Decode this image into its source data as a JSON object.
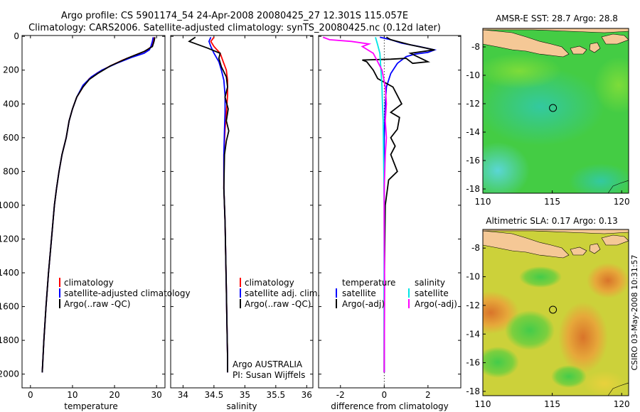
{
  "header": {
    "line1": "Argo profile: CS 5901174_54 24-Apr-2008 20080425_27 12.301S 115.057E",
    "line2": "Climatology: CARS2006. Satellite-adjusted climatology: synTS_20080425.nc (0.12d later)"
  },
  "side_caption": "CSIRO 03-May-2008 10:31:57",
  "colors": {
    "climatology": "#ff0000",
    "satellite": "#0000ff",
    "argo": "#000000",
    "satellite_salinity": "#00e5e5",
    "argo_salinity": "#ff00ff",
    "land": "#f5c896",
    "sst_bg": "#44cc44",
    "sla_bg": "#ccd13a"
  },
  "chart_data": [
    {
      "type": "line",
      "xlabel": "temperature",
      "ylabel": "",
      "xlim": [
        -2,
        32
      ],
      "ylim": [
        2050,
        0
      ],
      "xticks": [
        "0",
        "10",
        "20",
        "30"
      ],
      "xtick_values": [
        0,
        10,
        20,
        30
      ],
      "yticks": [
        "0",
        "200",
        "400",
        "600",
        "800",
        "1000",
        "1200",
        "1400",
        "1600",
        "1800",
        "2000"
      ],
      "ytick_values": [
        0,
        200,
        400,
        600,
        800,
        1000,
        1200,
        1400,
        1600,
        1800,
        2000
      ],
      "legend": [
        "climatology",
        "satellite-adjusted climatology",
        "Argo(..raw -QC)"
      ],
      "series": [
        {
          "name": "climatology",
          "color": "#ff0000",
          "points": [
            [
              29.5,
              5
            ],
            [
              29.2,
              30
            ],
            [
              28.8,
              60
            ],
            [
              27.5,
              85
            ],
            [
              25,
              110
            ],
            [
              22,
              140
            ],
            [
              19,
              175
            ],
            [
              16,
              215
            ],
            [
              14,
              250
            ],
            [
              12.5,
              300
            ],
            [
              11,
              360
            ],
            [
              10,
              430
            ],
            [
              9.2,
              500
            ],
            [
              8.5,
              600
            ],
            [
              7.5,
              700
            ],
            [
              6.8,
              800
            ],
            [
              6.2,
              900
            ],
            [
              5.7,
              1000
            ],
            [
              5,
              1200
            ],
            [
              4.3,
              1400
            ],
            [
              3.7,
              1600
            ],
            [
              3.2,
              1800
            ],
            [
              2.8,
              1990
            ]
          ]
        },
        {
          "name": "satellite-adjusted climatology",
          "color": "#0000ff",
          "points": [
            [
              29.2,
              5
            ],
            [
              29,
              30
            ],
            [
              28.7,
              55
            ],
            [
              28.3,
              80
            ],
            [
              27,
              100
            ],
            [
              24,
              125
            ],
            [
              20.5,
              160
            ],
            [
              17,
              200
            ],
            [
              14.5,
              240
            ],
            [
              12.5,
              290
            ],
            [
              11,
              360
            ],
            [
              10,
              430
            ],
            [
              9.2,
              500
            ],
            [
              8.5,
              600
            ],
            [
              7.5,
              700
            ],
            [
              6.8,
              800
            ],
            [
              6.2,
              900
            ],
            [
              5.7,
              1000
            ],
            [
              5,
              1200
            ],
            [
              4.3,
              1400
            ],
            [
              3.7,
              1600
            ],
            [
              3.2,
              1800
            ],
            [
              2.8,
              1990
            ]
          ]
        },
        {
          "name": "Argo(..raw -QC)",
          "color": "#000000",
          "points": [
            [
              29.6,
              5
            ],
            [
              29.4,
              30
            ],
            [
              29,
              60
            ],
            [
              27,
              90
            ],
            [
              23,
              130
            ],
            [
              19,
              175
            ],
            [
              16,
              220
            ],
            [
              14,
              255
            ],
            [
              12.5,
              300
            ],
            [
              11,
              360
            ],
            [
              10,
              430
            ],
            [
              9.2,
              500
            ],
            [
              8.5,
              600
            ],
            [
              7.5,
              700
            ],
            [
              6.8,
              800
            ],
            [
              6.2,
              900
            ],
            [
              5.7,
              1000
            ],
            [
              5,
              1200
            ],
            [
              4.3,
              1400
            ],
            [
              3.7,
              1600
            ],
            [
              3.2,
              1800
            ],
            [
              2.8,
              1990
            ]
          ]
        }
      ]
    },
    {
      "type": "line",
      "xlabel": "salinity",
      "ylabel": "",
      "xlim": [
        33.8,
        36.1
      ],
      "ylim": [
        2050,
        0
      ],
      "xticks": [
        "34",
        "34.5",
        "35",
        "35.5",
        "36"
      ],
      "xtick_values": [
        34,
        34.5,
        35,
        35.5,
        36
      ],
      "legend": [
        "climatology",
        "satellite adj. clim.",
        "Argo(..raw -QC)"
      ],
      "annotations": [
        "Argo AUSTRALIA",
        "PI: Susan Wijffels"
      ],
      "series": [
        {
          "name": "climatology",
          "color": "#ff0000",
          "points": [
            [
              34.5,
              5
            ],
            [
              34.45,
              30
            ],
            [
              34.5,
              60
            ],
            [
              34.6,
              100
            ],
            [
              34.65,
              150
            ],
            [
              34.7,
              200
            ],
            [
              34.72,
              260
            ],
            [
              34.72,
              350
            ],
            [
              34.7,
              450
            ],
            [
              34.68,
              550
            ],
            [
              34.66,
              700
            ],
            [
              34.66,
              900
            ],
            [
              34.68,
              1100
            ],
            [
              34.69,
              1300
            ],
            [
              34.7,
              1500
            ],
            [
              34.71,
              1700
            ],
            [
              34.72,
              1900
            ],
            [
              34.72,
              1990
            ]
          ]
        },
        {
          "name": "satellite adj. clim.",
          "color": "#0000ff",
          "points": [
            [
              34.45,
              5
            ],
            [
              34.42,
              30
            ],
            [
              34.45,
              60
            ],
            [
              34.5,
              100
            ],
            [
              34.58,
              150
            ],
            [
              34.62,
              200
            ],
            [
              34.66,
              260
            ],
            [
              34.68,
              350
            ],
            [
              34.68,
              450
            ],
            [
              34.67,
              550
            ],
            [
              34.66,
              700
            ],
            [
              34.66,
              900
            ],
            [
              34.68,
              1100
            ],
            [
              34.69,
              1300
            ],
            [
              34.7,
              1500
            ],
            [
              34.71,
              1700
            ],
            [
              34.72,
              1900
            ],
            [
              34.72,
              1990
            ]
          ]
        },
        {
          "name": "Argo(..raw -QC)",
          "color": "#000000",
          "points": [
            [
              34.2,
              5
            ],
            [
              34.1,
              30
            ],
            [
              34.4,
              70
            ],
            [
              34.6,
              100
            ],
            [
              34.58,
              130
            ],
            [
              34.62,
              180
            ],
            [
              34.7,
              240
            ],
            [
              34.72,
              300
            ],
            [
              34.68,
              360
            ],
            [
              34.73,
              430
            ],
            [
              34.7,
              500
            ],
            [
              34.74,
              560
            ],
            [
              34.7,
              620
            ],
            [
              34.67,
              700
            ],
            [
              34.66,
              900
            ],
            [
              34.68,
              1100
            ],
            [
              34.69,
              1300
            ],
            [
              34.7,
              1500
            ],
            [
              34.71,
              1700
            ],
            [
              34.72,
              1900
            ],
            [
              34.72,
              1990
            ]
          ]
        }
      ]
    },
    {
      "type": "line",
      "xlabel": "difference from climatology",
      "ylabel": "",
      "xlim": [
        -3,
        3.5
      ],
      "ylim": [
        2050,
        0
      ],
      "xticks": [
        "-2",
        "0",
        "2"
      ],
      "xtick_values": [
        -2,
        0,
        2
      ],
      "legend_left_title": "temperature",
      "legend_right_title": "salinity",
      "legend_left": [
        "satellite",
        "Argo(-adj)"
      ],
      "legend_right": [
        "satellite",
        "Argo(-adj)"
      ],
      "series": [
        {
          "name": "temperature satellite",
          "color": "#0000ff",
          "points": [
            [
              -0.2,
              5
            ],
            [
              0.3,
              20
            ],
            [
              0.8,
              40
            ],
            [
              1.6,
              60
            ],
            [
              2.3,
              80
            ],
            [
              2,
              95
            ],
            [
              1.4,
              105
            ],
            [
              1,
              120
            ],
            [
              0.6,
              160
            ],
            [
              0.3,
              220
            ],
            [
              0.1,
              300
            ],
            [
              0.05,
              400
            ],
            [
              0,
              600
            ],
            [
              0,
              1000
            ],
            [
              0,
              1500
            ],
            [
              0,
              1990
            ]
          ]
        },
        {
          "name": "temperature Argo(-adj)",
          "color": "#000000",
          "points": [
            [
              0.1,
              5
            ],
            [
              0.3,
              20
            ],
            [
              1.2,
              50
            ],
            [
              2.3,
              80
            ],
            [
              1.2,
              100
            ],
            [
              2,
              150
            ],
            [
              1.3,
              160
            ],
            [
              1,
              130
            ],
            [
              0.3,
              135
            ],
            [
              -1,
              140
            ],
            [
              -0.8,
              150
            ],
            [
              -0.5,
              200
            ],
            [
              -0.3,
              250
            ],
            [
              0.4,
              300
            ],
            [
              0.8,
              400
            ],
            [
              0.3,
              450
            ],
            [
              0.7,
              480
            ],
            [
              0.6,
              550
            ],
            [
              0.3,
              600
            ],
            [
              0.5,
              650
            ],
            [
              0.3,
              700
            ],
            [
              0.6,
              800
            ],
            [
              0.2,
              850
            ],
            [
              0.05,
              1000
            ],
            [
              0,
              1500
            ],
            [
              0,
              1990
            ]
          ]
        },
        {
          "name": "salinity satellite",
          "color": "#00e5e5",
          "points": [
            [
              -0.4,
              5
            ],
            [
              -0.3,
              50
            ],
            [
              -0.2,
              100
            ],
            [
              -0.15,
              200
            ],
            [
              -0.1,
              300
            ],
            [
              -0.08,
              400
            ],
            [
              -0.05,
              500
            ],
            [
              -0.03,
              700
            ],
            [
              0,
              1000
            ],
            [
              0,
              1500
            ],
            [
              0,
              1990
            ]
          ]
        },
        {
          "name": "salinity Argo(-adj)",
          "color": "#ff00ff",
          "points": [
            [
              -2.8,
              5
            ],
            [
              -2.5,
              20
            ],
            [
              -1.5,
              30
            ],
            [
              -0.7,
              45
            ],
            [
              -1,
              60
            ],
            [
              -0.5,
              100
            ],
            [
              -0.1,
              200
            ],
            [
              0.05,
              300
            ],
            [
              0.1,
              400
            ],
            [
              0.05,
              500
            ],
            [
              0.1,
              600
            ],
            [
              0.05,
              700
            ],
            [
              0,
              900
            ],
            [
              0,
              1100
            ],
            [
              0.02,
              1500
            ],
            [
              0,
              1990
            ]
          ]
        }
      ]
    },
    {
      "type": "heatmap",
      "title": "AMSR-E SST: 28.7 Argo: 28.8",
      "xlim": [
        110,
        120.5
      ],
      "ylim": [
        -18.3,
        -6.7
      ],
      "xticks": [
        "110",
        "115",
        "120"
      ],
      "xtick_values": [
        110,
        115,
        120
      ],
      "yticks": [
        "-8",
        "-10",
        "-12",
        "-14",
        "-16",
        "-18"
      ],
      "ytick_values": [
        -8,
        -10,
        -12,
        -14,
        -16,
        -18
      ],
      "marker": [
        115.05,
        -12.3
      ]
    },
    {
      "type": "heatmap",
      "title": "Altimetric SLA: 0.17 Argo: 0.13",
      "xlim": [
        110,
        120.5
      ],
      "ylim": [
        -18.3,
        -6.7
      ],
      "xticks": [
        "110",
        "115",
        "120"
      ],
      "xtick_values": [
        110,
        115,
        120
      ],
      "yticks": [
        "-8",
        "-10",
        "-12",
        "-14",
        "-16",
        "-18"
      ],
      "ytick_values": [
        -8,
        -10,
        -12,
        -14,
        -16,
        -18
      ],
      "marker": [
        115.05,
        -12.3
      ]
    }
  ]
}
